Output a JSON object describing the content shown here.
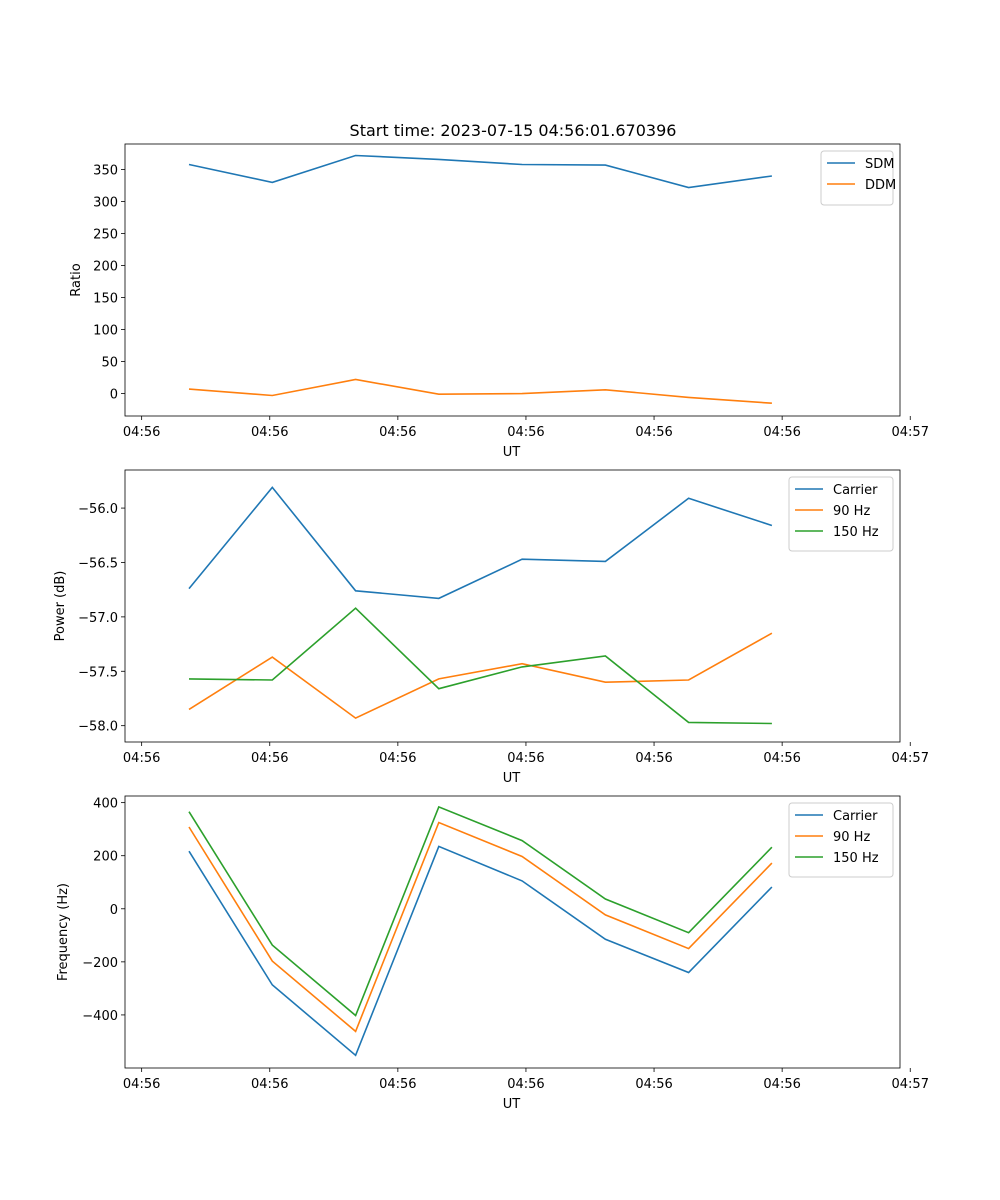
{
  "figure": {
    "title": "Start time: 2023-07-15 04:56:01.670396"
  },
  "chart_data": [
    {
      "type": "line",
      "title": "Start time: 2023-07-15 04:56:01.670396",
      "xlabel": "UT",
      "ylabel": "Ratio",
      "xlim": [
        -0.5,
        5.55
      ],
      "ylim": [
        -35,
        390
      ],
      "x_ticks": [
        {
          "value": -0.37,
          "label": "04:56"
        },
        {
          "value": 0.63,
          "label": "04:56"
        },
        {
          "value": 1.63,
          "label": "04:56"
        },
        {
          "value": 2.63,
          "label": "04:56"
        },
        {
          "value": 3.63,
          "label": "04:56"
        },
        {
          "value": 4.63,
          "label": "04:56"
        },
        {
          "value": 5.63,
          "label": "04:57"
        }
      ],
      "y_ticks": [
        0,
        50,
        100,
        150,
        200,
        250,
        300,
        350
      ],
      "x": [
        0,
        0.65,
        1.3,
        1.95,
        2.6,
        3.25,
        3.9,
        4.55
      ],
      "legend_position": "top-right",
      "series": [
        {
          "name": "SDM",
          "color": "#1f77b4",
          "values": [
            358,
            330,
            372,
            366,
            358,
            357,
            322,
            340
          ]
        },
        {
          "name": "DDM",
          "color": "#ff7f0e",
          "values": [
            7,
            -3,
            22,
            -1,
            0,
            6,
            -6,
            -15
          ]
        }
      ]
    },
    {
      "type": "line",
      "title": "",
      "xlabel": "UT",
      "ylabel": "Power (dB)",
      "xlim": [
        -0.5,
        5.55
      ],
      "ylim": [
        -58.15,
        -55.65
      ],
      "x_ticks": [
        {
          "value": -0.37,
          "label": "04:56"
        },
        {
          "value": 0.63,
          "label": "04:56"
        },
        {
          "value": 1.63,
          "label": "04:56"
        },
        {
          "value": 2.63,
          "label": "04:56"
        },
        {
          "value": 3.63,
          "label": "04:56"
        },
        {
          "value": 4.63,
          "label": "04:56"
        },
        {
          "value": 5.63,
          "label": "04:57"
        }
      ],
      "y_ticks": [
        -58.0,
        -57.5,
        -57.0,
        -56.5,
        -56.0
      ],
      "y_tick_labels": [
        "−58.0",
        "−57.5",
        "−57.0",
        "−56.5",
        "−56.0"
      ],
      "x": [
        0,
        0.65,
        1.3,
        1.95,
        2.6,
        3.25,
        3.9,
        4.55
      ],
      "legend_position": "top-right",
      "series": [
        {
          "name": "Carrier",
          "color": "#1f77b4",
          "values": [
            -56.74,
            -55.81,
            -56.76,
            -56.83,
            -56.47,
            -56.49,
            -55.91,
            -56.16
          ]
        },
        {
          "name": "90 Hz",
          "color": "#ff7f0e",
          "values": [
            -57.85,
            -57.37,
            -57.93,
            -57.57,
            -57.43,
            -57.6,
            -57.58,
            -57.15
          ]
        },
        {
          "name": "150 Hz",
          "color": "#2ca02c",
          "values": [
            -57.57,
            -57.58,
            -56.92,
            -57.66,
            -57.46,
            -57.36,
            -57.97,
            -57.98
          ]
        }
      ]
    },
    {
      "type": "line",
      "title": "",
      "xlabel": "UT",
      "ylabel": "Frequency (Hz)",
      "xlim": [
        -0.5,
        5.55
      ],
      "ylim": [
        -600,
        425
      ],
      "x_ticks": [
        {
          "value": -0.37,
          "label": "04:56"
        },
        {
          "value": 0.63,
          "label": "04:56"
        },
        {
          "value": 1.63,
          "label": "04:56"
        },
        {
          "value": 2.63,
          "label": "04:56"
        },
        {
          "value": 3.63,
          "label": "04:56"
        },
        {
          "value": 4.63,
          "label": "04:56"
        },
        {
          "value": 5.63,
          "label": "04:57"
        }
      ],
      "y_ticks": [
        -400,
        -200,
        0,
        200,
        400
      ],
      "y_tick_labels": [
        "−400",
        "−200",
        "0",
        "200",
        "400"
      ],
      "x": [
        0,
        0.65,
        1.3,
        1.95,
        2.6,
        3.25,
        3.9,
        4.55
      ],
      "legend_position": "top-right",
      "series": [
        {
          "name": "Carrier",
          "color": "#1f77b4",
          "values": [
            217,
            -287,
            -552,
            235,
            105,
            -115,
            -240,
            82
          ]
        },
        {
          "name": "90 Hz",
          "color": "#ff7f0e",
          "values": [
            308,
            -197,
            -462,
            325,
            197,
            -23,
            -150,
            172
          ]
        },
        {
          "name": "150 Hz",
          "color": "#2ca02c",
          "values": [
            366,
            -137,
            -402,
            384,
            257,
            37,
            -90,
            232
          ]
        }
      ]
    }
  ]
}
